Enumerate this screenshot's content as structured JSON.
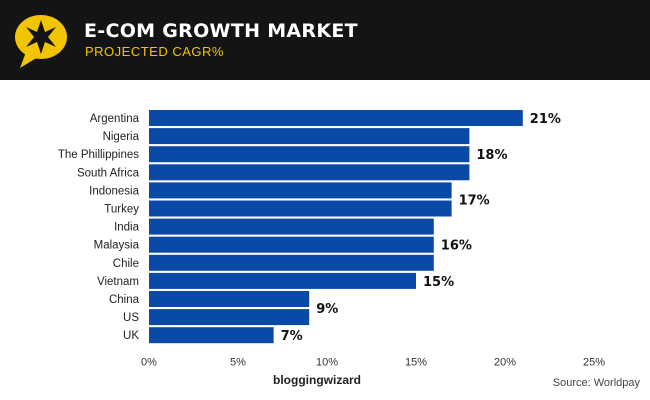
{
  "header": {
    "title": "E-COM GROWTH MARKET",
    "subtitle": "PROJECTED CAGR%",
    "logo_icon": "star-speech-bubble-icon"
  },
  "footer": {
    "brand": "bloggingwizard",
    "source": "Source: Worldpay"
  },
  "colors": {
    "bar": "#0a4aa6",
    "header_bg": "#141414",
    "accent": "#f2c500"
  },
  "chart_data": {
    "type": "bar",
    "orientation": "horizontal",
    "categories": [
      "Argentina",
      "Nigeria",
      "The Phillippines",
      "South Africa",
      "Indonesia",
      "Turkey",
      "India",
      "Malaysia",
      "Chile",
      "Vietnam",
      "China",
      "US",
      "UK"
    ],
    "values": [
      21,
      18,
      18,
      18,
      17,
      17,
      16,
      16,
      16,
      15,
      9,
      9,
      7
    ],
    "value_labels": [
      {
        "text": "21%",
        "categories": [
          "Argentina"
        ]
      },
      {
        "text": "18%",
        "categories": [
          "Nigeria",
          "The Phillippines",
          "South Africa"
        ]
      },
      {
        "text": "17%",
        "categories": [
          "Indonesia",
          "Turkey"
        ]
      },
      {
        "text": "16%",
        "categories": [
          "India",
          "Malaysia",
          "Chile"
        ]
      },
      {
        "text": "15%",
        "categories": [
          "Vietnam"
        ]
      },
      {
        "text": "9%",
        "categories": [
          "China",
          "US"
        ]
      },
      {
        "text": "7%",
        "categories": [
          "UK"
        ]
      }
    ],
    "xlim": [
      0,
      25
    ],
    "xticks": [
      "0%",
      "5%",
      "10%",
      "15%",
      "20%",
      "25%"
    ],
    "grid": false
  }
}
